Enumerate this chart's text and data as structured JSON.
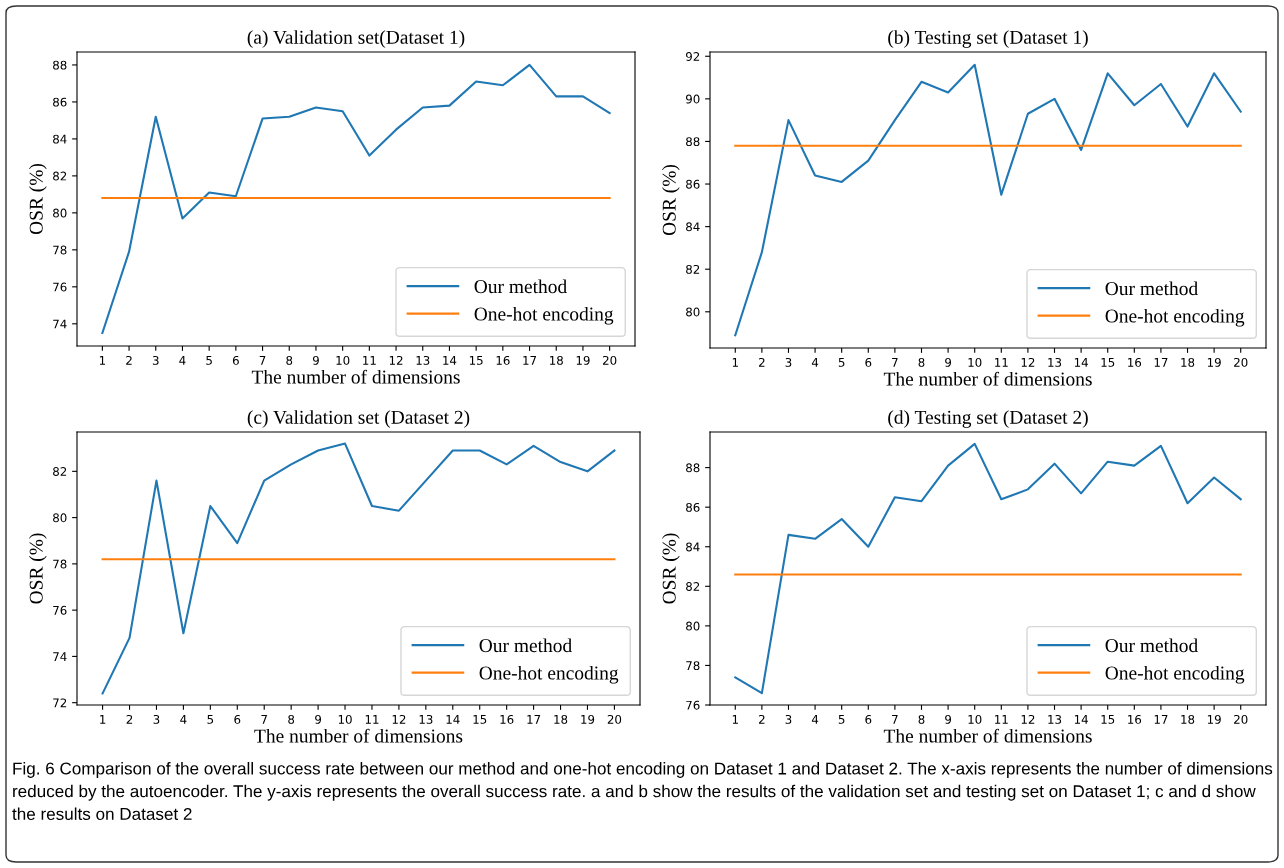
{
  "chart_data": [
    {
      "type": "line",
      "title": "(a) Validation set(Dataset 1)",
      "xlabel": "The number of dimensions",
      "ylabel": "OSR (%)",
      "x": [
        1,
        2,
        3,
        4,
        5,
        6,
        7,
        8,
        9,
        10,
        11,
        12,
        13,
        14,
        15,
        16,
        17,
        18,
        19,
        20
      ],
      "series": [
        {
          "name": "Our method",
          "color": "#1f77b4",
          "values": [
            73.5,
            77.9,
            85.2,
            79.7,
            81.1,
            80.9,
            85.1,
            85.2,
            85.7,
            85.5,
            83.1,
            84.5,
            85.7,
            85.8,
            87.1,
            86.9,
            88.0,
            86.3,
            86.3,
            85.4
          ]
        },
        {
          "name": "One-hot encoding",
          "color": "#ff7f0e",
          "values": [
            80.8,
            80.8,
            80.8,
            80.8,
            80.8,
            80.8,
            80.8,
            80.8,
            80.8,
            80.8,
            80.8,
            80.8,
            80.8,
            80.8,
            80.8,
            80.8,
            80.8,
            80.8,
            80.8,
            80.8
          ]
        }
      ],
      "xlim": [
        0.05,
        20.95
      ],
      "xticks": [
        1,
        2,
        3,
        4,
        5,
        6,
        7,
        8,
        9,
        10,
        11,
        12,
        13,
        14,
        15,
        16,
        17,
        18,
        19,
        20
      ],
      "ylim": [
        72.8,
        88.7
      ],
      "yticks": [
        74,
        76,
        78,
        80,
        82,
        84,
        86,
        88
      ],
      "grid": false,
      "legend": "bottom right",
      "marker": "none",
      "line_style": "solid",
      "annotations": [
        "Fig. 6 Comparison of the overall success rate between our method and one-hot encoding on Dataset 1 and Dataset 2. The x-axis represents the number of dimensions reduced by the autoencoder. The y-axis represents the overall success rate. a and b show the results of the validation set and testing set on Dataset 1; c and d show the results on Dataset 2"
      ]
    },
    {
      "type": "line",
      "title": "(b) Testing set (Dataset 1)",
      "xlabel": "The number of dimensions",
      "ylabel": "OSR (%)",
      "x": [
        1,
        2,
        3,
        4,
        5,
        6,
        7,
        8,
        9,
        10,
        11,
        12,
        13,
        14,
        15,
        16,
        17,
        18,
        19,
        20
      ],
      "series": [
        {
          "name": "Our method",
          "color": "#1f77b4",
          "values": [
            78.9,
            82.8,
            89.0,
            86.4,
            86.1,
            87.1,
            89.0,
            90.8,
            90.3,
            91.6,
            85.5,
            89.3,
            90.0,
            87.6,
            91.2,
            89.7,
            90.7,
            88.7,
            91.2,
            89.4
          ]
        },
        {
          "name": "One-hot encoding",
          "color": "#ff7f0e",
          "values": [
            87.8,
            87.8,
            87.8,
            87.8,
            87.8,
            87.8,
            87.8,
            87.8,
            87.8,
            87.8,
            87.8,
            87.8,
            87.8,
            87.8,
            87.8,
            87.8,
            87.8,
            87.8,
            87.8,
            87.8
          ]
        }
      ],
      "xlim": [
        0.05,
        20.95
      ],
      "xticks": [
        1,
        2,
        3,
        4,
        5,
        6,
        7,
        8,
        9,
        10,
        11,
        12,
        13,
        14,
        15,
        16,
        17,
        18,
        19,
        20
      ],
      "ylim": [
        78.3,
        92.2
      ],
      "yticks": [
        80,
        82,
        84,
        86,
        88,
        90,
        92
      ],
      "grid": false,
      "legend": "bottom right",
      "marker": "none",
      "line_style": "solid"
    },
    {
      "type": "line",
      "title": "(c) Validation set (Dataset 2)",
      "xlabel": "The number of dimensions",
      "ylabel": "OSR (%)",
      "x": [
        1,
        2,
        3,
        4,
        5,
        6,
        7,
        8,
        9,
        10,
        11,
        12,
        13,
        14,
        15,
        16,
        17,
        18,
        19,
        20
      ],
      "series": [
        {
          "name": "Our method",
          "color": "#1f77b4",
          "values": [
            72.4,
            74.8,
            81.6,
            75.0,
            80.5,
            78.9,
            81.6,
            82.3,
            82.9,
            83.2,
            80.5,
            80.3,
            81.6,
            82.9,
            82.9,
            82.3,
            83.1,
            82.4,
            82.0,
            82.9
          ]
        },
        {
          "name": "One-hot encoding",
          "color": "#ff7f0e",
          "values": [
            78.2,
            78.2,
            78.2,
            78.2,
            78.2,
            78.2,
            78.2,
            78.2,
            78.2,
            78.2,
            78.2,
            78.2,
            78.2,
            78.2,
            78.2,
            78.2,
            78.2,
            78.2,
            78.2,
            78.2
          ]
        }
      ],
      "xlim": [
        0.05,
        20.95
      ],
      "xticks": [
        1,
        2,
        3,
        4,
        5,
        6,
        7,
        8,
        9,
        10,
        11,
        12,
        13,
        14,
        15,
        16,
        17,
        18,
        19,
        20
      ],
      "ylim": [
        71.9,
        83.7
      ],
      "yticks": [
        72,
        74,
        76,
        78,
        80,
        82
      ],
      "grid": false,
      "legend": "bottom right",
      "marker": "none",
      "line_style": "solid"
    },
    {
      "type": "line",
      "title": "(d) Testing set (Dataset 2)",
      "xlabel": "The number of dimensions",
      "ylabel": "OSR (%)",
      "x": [
        1,
        2,
        3,
        4,
        5,
        6,
        7,
        8,
        9,
        10,
        11,
        12,
        13,
        14,
        15,
        16,
        17,
        18,
        19,
        20
      ],
      "series": [
        {
          "name": "Our method",
          "color": "#1f77b4",
          "values": [
            77.4,
            76.6,
            84.6,
            84.4,
            85.4,
            84.0,
            86.5,
            86.3,
            88.1,
            89.2,
            86.4,
            86.9,
            88.2,
            86.7,
            88.3,
            88.1,
            89.1,
            86.2,
            87.5,
            86.4
          ]
        },
        {
          "name": "One-hot encoding",
          "color": "#ff7f0e",
          "values": [
            82.6,
            82.6,
            82.6,
            82.6,
            82.6,
            82.6,
            82.6,
            82.6,
            82.6,
            82.6,
            82.6,
            82.6,
            82.6,
            82.6,
            82.6,
            82.6,
            82.6,
            82.6,
            82.6,
            82.6
          ]
        }
      ],
      "xlim": [
        0.05,
        20.95
      ],
      "xticks": [
        1,
        2,
        3,
        4,
        5,
        6,
        7,
        8,
        9,
        10,
        11,
        12,
        13,
        14,
        15,
        16,
        17,
        18,
        19,
        20
      ],
      "ylim": [
        76.0,
        89.8
      ],
      "yticks": [
        76,
        78,
        80,
        82,
        84,
        86,
        88
      ],
      "grid": false,
      "legend": "bottom right",
      "marker": "none",
      "line_style": "solid"
    }
  ]
}
